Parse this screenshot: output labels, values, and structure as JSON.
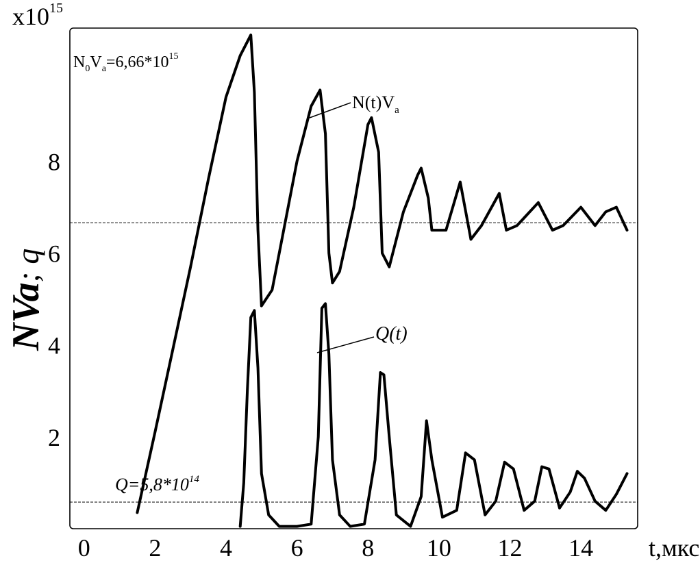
{
  "chart_data": {
    "type": "line",
    "title": "",
    "xlabel": "t,мкс",
    "ylabel_parts": {
      "main": "NVa",
      "sep": "; ",
      "tail": "q"
    },
    "ylabel": "NVa; q",
    "exponent_parts": {
      "base": "x10",
      "power": "15"
    },
    "exponent_label": "x10^15",
    "xlim": [
      -0.4,
      15.6
    ],
    "ylim": [
      0.0,
      10.9
    ],
    "x_ticks": [
      "0",
      "2",
      "4",
      "6",
      "8",
      "10",
      "12",
      "14"
    ],
    "y_ticks": [
      "2",
      "4",
      "6",
      "8"
    ],
    "grid": false,
    "reference_lines": [
      {
        "name": "N0Va",
        "y": 6.66
      },
      {
        "name": "Q",
        "y": 0.58
      }
    ],
    "annotations": {
      "n0va": {
        "N": "N",
        "sub0": "0",
        "V": "V",
        "subA": "a",
        "rest": "=6,66*10",
        "sup": "15"
      },
      "nt": {
        "main": "N(t)V",
        "sub": "a"
      },
      "qt": {
        "main": "Q(t)"
      },
      "q": {
        "main": "Q=5,8*10",
        "sup": "14"
      }
    },
    "series": [
      {
        "name": "N(t)V_a",
        "x": [
          1.5,
          2.0,
          2.5,
          3.0,
          3.5,
          4.0,
          4.4,
          4.7,
          4.8,
          4.9,
          5.0,
          5.3,
          5.6,
          6.0,
          6.4,
          6.65,
          6.8,
          6.9,
          7.0,
          7.2,
          7.6,
          8.0,
          8.1,
          8.3,
          8.4,
          8.6,
          9.0,
          9.4,
          9.5,
          9.7,
          9.8,
          10.2,
          10.6,
          10.9,
          11.2,
          11.7,
          11.9,
          12.2,
          12.8,
          13.2,
          13.5,
          14.0,
          14.4,
          14.7,
          15.0,
          15.3
        ],
        "y": [
          0.35,
          2.1,
          3.9,
          5.7,
          7.6,
          9.4,
          10.3,
          10.75,
          9.5,
          6.5,
          4.85,
          5.2,
          6.4,
          8.0,
          9.2,
          9.55,
          8.6,
          6.0,
          5.35,
          5.6,
          7.0,
          8.8,
          8.95,
          8.2,
          6.0,
          5.7,
          6.9,
          7.7,
          7.85,
          7.2,
          6.5,
          6.5,
          7.55,
          6.3,
          6.6,
          7.3,
          6.5,
          6.6,
          7.1,
          6.5,
          6.6,
          7.0,
          6.6,
          6.9,
          7.0,
          6.5
        ]
      },
      {
        "name": "Q(t)",
        "x": [
          4.4,
          4.5,
          4.6,
          4.7,
          4.8,
          4.9,
          5.0,
          5.2,
          5.5,
          6.0,
          6.4,
          6.6,
          6.7,
          6.8,
          6.9,
          7.0,
          7.2,
          7.5,
          7.9,
          8.2,
          8.35,
          8.45,
          8.6,
          8.8,
          9.2,
          9.5,
          9.65,
          9.8,
          10.1,
          10.5,
          10.75,
          11.0,
          11.3,
          11.6,
          11.85,
          12.1,
          12.4,
          12.7,
          12.9,
          13.1,
          13.4,
          13.7,
          13.9,
          14.1,
          14.4,
          14.7,
          15.0,
          15.3
        ],
        "y": [
          0.05,
          1.0,
          3.0,
          4.6,
          4.75,
          3.5,
          1.2,
          0.3,
          0.05,
          0.05,
          0.1,
          2.0,
          4.8,
          4.9,
          3.8,
          1.5,
          0.3,
          0.05,
          0.1,
          1.5,
          3.4,
          3.35,
          2.0,
          0.3,
          0.05,
          0.7,
          2.35,
          1.5,
          0.25,
          0.4,
          1.65,
          1.5,
          0.3,
          0.6,
          1.45,
          1.3,
          0.4,
          0.6,
          1.35,
          1.3,
          0.45,
          0.8,
          1.25,
          1.1,
          0.6,
          0.4,
          0.75,
          1.2
        ]
      }
    ]
  }
}
